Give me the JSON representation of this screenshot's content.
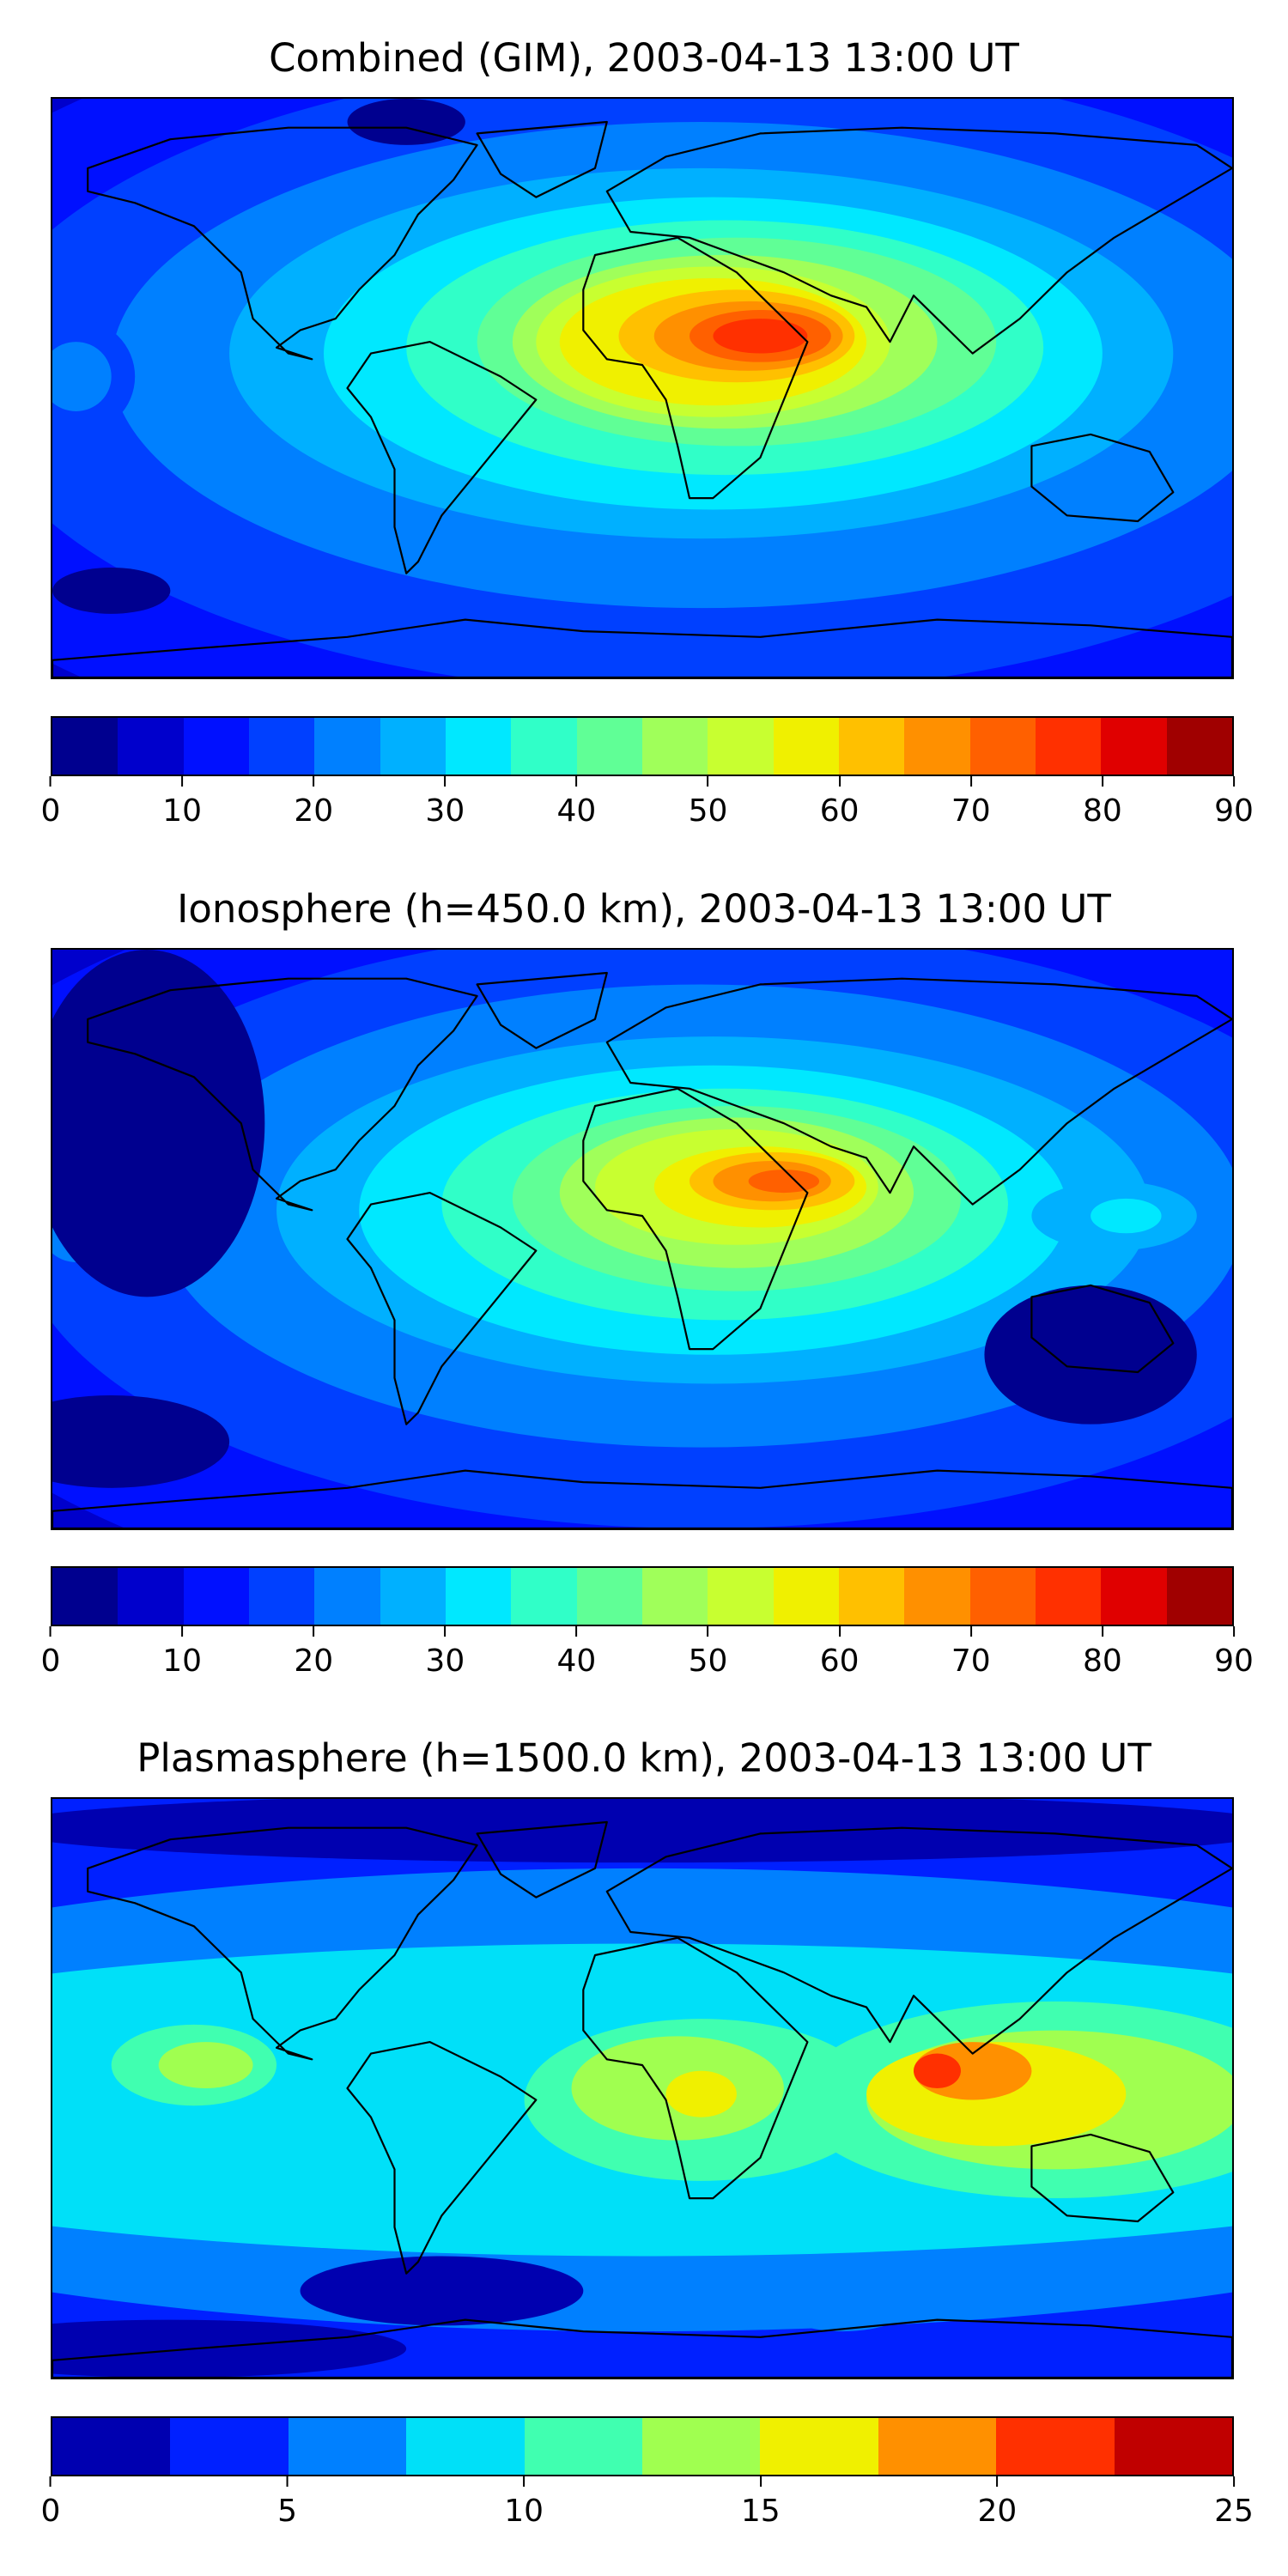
{
  "chart_data": [
    {
      "type": "heatmap",
      "title": "Combined (GIM), 2003-04-13 13:00 UT",
      "colorbar": {
        "levels": [
          0,
          5,
          10,
          15,
          20,
          25,
          30,
          35,
          40,
          45,
          50,
          55,
          60,
          65,
          70,
          75,
          80,
          85,
          90
        ],
        "ticks": [
          0,
          10,
          20,
          30,
          40,
          50,
          60,
          70,
          80,
          90
        ],
        "colors": [
          "#00008f",
          "#0000cc",
          "#0010ff",
          "#0040ff",
          "#0080ff",
          "#00b0ff",
          "#00e8ff",
          "#30ffc8",
          "#60ff96",
          "#a0ff5a",
          "#c8ff30",
          "#f0f000",
          "#ffc000",
          "#ff9000",
          "#ff6000",
          "#ff3000",
          "#e00000",
          "#a00000"
        ]
      },
      "grid": false,
      "peak_region": "Africa / Middle East, value ~80"
    },
    {
      "type": "heatmap",
      "title": "Ionosphere  (h=450.0 km), 2003-04-13 13:00 UT",
      "colorbar": {
        "levels": [
          0,
          5,
          10,
          15,
          20,
          25,
          30,
          35,
          40,
          45,
          50,
          55,
          60,
          65,
          70,
          75,
          80,
          85,
          90
        ],
        "ticks": [
          0,
          10,
          20,
          30,
          40,
          50,
          60,
          70,
          80,
          90
        ],
        "colors": [
          "#00008f",
          "#0000cc",
          "#0010ff",
          "#0040ff",
          "#0080ff",
          "#00b0ff",
          "#00e8ff",
          "#30ffc8",
          "#60ff96",
          "#a0ff5a",
          "#c8ff30",
          "#f0f000",
          "#ffc000",
          "#ff9000",
          "#ff6000",
          "#ff3000",
          "#e00000",
          "#a00000"
        ]
      },
      "grid": false,
      "peak_region": "Arabian peninsula / NE Africa, value ~70"
    },
    {
      "type": "heatmap",
      "title": "Plasmasphere (h=1500.0 km), 2003-04-13 13:00 UT",
      "colorbar": {
        "levels": [
          0,
          2.5,
          5,
          7.5,
          10,
          12.5,
          15,
          17.5,
          20,
          22.5,
          25
        ],
        "ticks": [
          0,
          5,
          10,
          15,
          20,
          25
        ],
        "colors": [
          "#0000b0",
          "#0020ff",
          "#0080ff",
          "#00e0f8",
          "#40ffb0",
          "#a0ff50",
          "#f0f000",
          "#ff9000",
          "#ff3000",
          "#c00000"
        ]
      },
      "grid": false,
      "peak_region": "India / SE Asia, value ~20"
    }
  ]
}
